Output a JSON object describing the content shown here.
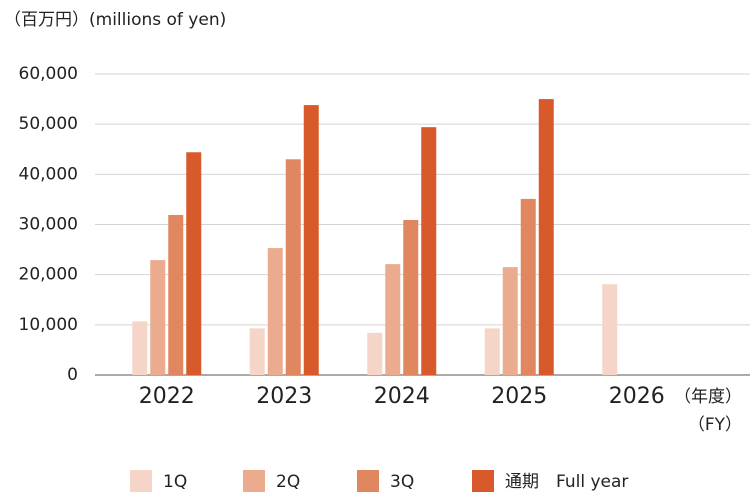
{
  "chart_data": {
    "type": "bar",
    "title": "（百万円）(millions of yen)",
    "x_label": "（年度）",
    "x_label_en": "（FY）",
    "categories": [
      "2022",
      "2023",
      "2024",
      "2025",
      "2026"
    ],
    "series": [
      {
        "name": "1Q",
        "color": "#f5d5c8",
        "values": [
          10700,
          9300,
          8400,
          9300,
          18100
        ]
      },
      {
        "name": "2Q",
        "color": "#eaab8e",
        "values": [
          22900,
          25300,
          22100,
          21500,
          null
        ]
      },
      {
        "name": "3Q",
        "color": "#e08760",
        "values": [
          31900,
          43000,
          30900,
          35100,
          null
        ]
      },
      {
        "name": "通期　Full year",
        "color": "#d85a2a",
        "values": [
          44400,
          53800,
          49400,
          55000,
          null
        ]
      }
    ],
    "ylim": [
      0,
      60000
    ],
    "yticks": [
      0,
      {
        "value": 10000,
        "label": "10,000"
      },
      {
        "value": 20000,
        "label": "20,000"
      },
      {
        "value": 30000,
        "label": "30,000"
      },
      {
        "value": 40000,
        "label": "40,000"
      },
      {
        "value": 50000,
        "label": "50,000"
      },
      {
        "value": 60000,
        "label": "60,000"
      }
    ],
    "grid": true,
    "legend": "bottom"
  }
}
